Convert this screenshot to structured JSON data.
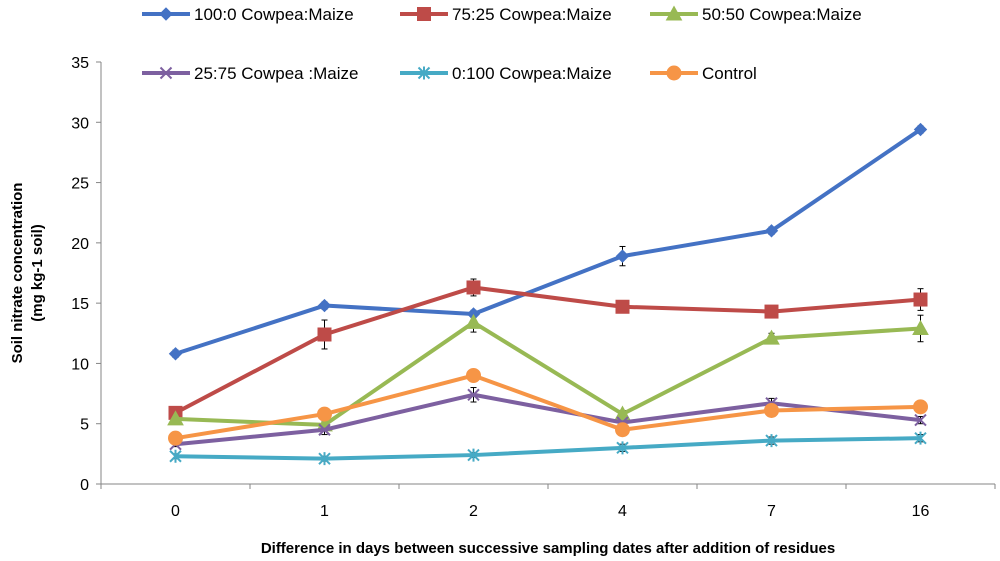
{
  "chart_data": {
    "type": "line",
    "xlabel": "Difference in days between successive sampling dates after addition of residues",
    "ylabel_lines": [
      "Soil nitrate concentration",
      "(mg kg-1 soil)"
    ],
    "categories": [
      "0",
      "1",
      "2",
      "4",
      "7",
      "16"
    ],
    "ylim": [
      0,
      35
    ],
    "yticks": [
      0,
      5,
      10,
      15,
      20,
      25,
      30,
      35
    ],
    "grid": false,
    "legend_position": "top",
    "series": [
      {
        "name": "100:0 Cowpea:Maize",
        "color": "#4472C4",
        "marker": "diamond",
        "values": [
          10.8,
          14.8,
          14.1,
          18.9,
          21.0,
          29.4
        ],
        "errors": [
          0.3,
          0.3,
          0.3,
          0.8,
          0.3,
          0.3
        ]
      },
      {
        "name": "75:25 Cowpea:Maize",
        "color": "#BE4B48",
        "marker": "square",
        "values": [
          5.9,
          12.4,
          16.3,
          14.7,
          14.3,
          15.3
        ],
        "errors": [
          0.4,
          1.2,
          0.7,
          0.3,
          0.3,
          0.9
        ]
      },
      {
        "name": "50:50 Cowpea:Maize",
        "color": "#98B954",
        "marker": "triangle",
        "values": [
          5.4,
          4.9,
          13.4,
          5.8,
          12.1,
          12.9
        ],
        "errors": [
          0.3,
          0.3,
          0.8,
          0.3,
          0.4,
          1.1
        ]
      },
      {
        "name": "25:75 Cowpea :Maize",
        "color": "#7D60A0",
        "marker": "x",
        "values": [
          3.3,
          4.5,
          7.4,
          5.1,
          6.7,
          5.3
        ],
        "errors": [
          0.2,
          0.4,
          0.6,
          0.3,
          0.4,
          0.3
        ]
      },
      {
        "name": "0:100 Cowpea:Maize",
        "color": "#46AAC5",
        "marker": "star",
        "values": [
          2.3,
          2.1,
          2.4,
          3.0,
          3.6,
          3.8
        ],
        "errors": [
          0.2,
          0.2,
          0.2,
          0.3,
          0.3,
          0.3
        ]
      },
      {
        "name": "Control",
        "color": "#F69546",
        "marker": "circle",
        "values": [
          3.8,
          5.8,
          9.0,
          4.5,
          6.1,
          6.4
        ],
        "errors": [
          0.3,
          0.3,
          0.3,
          0.3,
          0.3,
          0.3
        ]
      }
    ]
  }
}
